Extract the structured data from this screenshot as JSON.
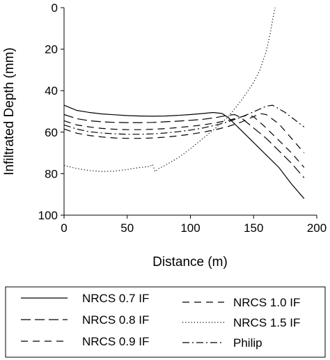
{
  "chart_data": {
    "type": "line",
    "xlabel": "Distance (m)",
    "ylabel": "Infiltrated Depth (mm)",
    "xlim": [
      0,
      200
    ],
    "ylim": [
      0,
      100
    ],
    "y_inverted": true,
    "x_ticks": [
      0,
      50,
      100,
      150,
      200
    ],
    "y_ticks": [
      0,
      20,
      40,
      60,
      80,
      100
    ],
    "grid": false,
    "legend_position": "bottom",
    "series": [
      {
        "name": "NRCS 0.7 IF",
        "style": "solid",
        "x": [
          0,
          10,
          20,
          30,
          40,
          50,
          60,
          70,
          80,
          90,
          100,
          110,
          118,
          125,
          130,
          135,
          140,
          150,
          160,
          170,
          180,
          190
        ],
        "y": [
          47,
          49.5,
          50.5,
          51.2,
          51.6,
          52,
          52.2,
          52.3,
          52.2,
          51.9,
          51.5,
          51,
          50.5,
          51,
          53,
          56,
          59,
          65,
          71,
          77,
          85,
          92
        ]
      },
      {
        "name": "NRCS 0.8 IF",
        "style": "long-dash",
        "x": [
          0,
          10,
          20,
          30,
          40,
          50,
          60,
          70,
          80,
          90,
          100,
          110,
          120,
          128,
          135,
          140,
          150,
          160,
          170,
          180,
          190
        ],
        "y": [
          51.5,
          53.5,
          54.5,
          55,
          55.3,
          55.4,
          55.4,
          55.3,
          55,
          54.7,
          54.3,
          53.8,
          53,
          52,
          51.5,
          53,
          58,
          63,
          69,
          75,
          82
        ]
      },
      {
        "name": "NRCS 0.9 IF",
        "style": "dash",
        "x": [
          0,
          10,
          20,
          30,
          40,
          50,
          60,
          70,
          80,
          90,
          100,
          110,
          120,
          130,
          140,
          145,
          150,
          160,
          170,
          180,
          190
        ],
        "y": [
          54.5,
          56.5,
          57.5,
          58.2,
          58.6,
          58.8,
          58.8,
          58.6,
          58.3,
          57.8,
          57.2,
          56.5,
          55.5,
          54.3,
          52.7,
          51.8,
          52.5,
          58,
          64,
          70,
          77
        ]
      },
      {
        "name": "NRCS 1.0 IF",
        "style": "dash",
        "x": [
          0,
          10,
          20,
          30,
          40,
          50,
          60,
          70,
          80,
          90,
          100,
          110,
          120,
          130,
          140,
          150,
          155,
          160,
          170,
          180,
          190
        ],
        "y": [
          58.5,
          60.5,
          61.6,
          62.3,
          62.8,
          63,
          63,
          62.8,
          62.4,
          61.8,
          61,
          60,
          58.8,
          57.2,
          55.2,
          52.5,
          51,
          51.5,
          56,
          63,
          70
        ]
      },
      {
        "name": "NRCS 1.5 IF",
        "style": "dotted",
        "x": [
          0,
          10,
          20,
          30,
          40,
          50,
          60,
          68,
          70,
          72,
          75,
          80,
          90,
          100,
          110,
          120,
          130,
          140,
          150,
          155,
          160,
          163,
          165,
          167
        ],
        "y": [
          76,
          77.5,
          78.5,
          79,
          78.8,
          78,
          77,
          76.5,
          75.5,
          79,
          77.5,
          76,
          72.5,
          68,
          63,
          58,
          52.5,
          45,
          36,
          30,
          21,
          13,
          6,
          0
        ]
      },
      {
        "name": "Philip",
        "style": "dash-dot",
        "x": [
          0,
          10,
          20,
          30,
          40,
          50,
          60,
          70,
          80,
          90,
          100,
          110,
          120,
          130,
          140,
          150,
          160,
          165,
          175,
          190
        ],
        "y": [
          56.5,
          58.5,
          59.8,
          60.4,
          60.8,
          61,
          61,
          60.8,
          60.4,
          59.8,
          59,
          58,
          56.6,
          55,
          52.8,
          50.2,
          47.5,
          47,
          50.5,
          57.5
        ]
      }
    ]
  }
}
